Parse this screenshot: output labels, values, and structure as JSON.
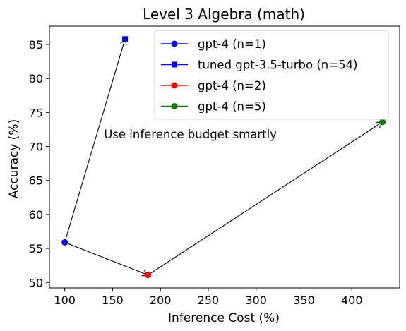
{
  "chart_data": {
    "type": "scatter",
    "title": "Level 3 Algebra (math)",
    "xlabel": "Inference Cost (%)",
    "ylabel": "Accuracy (%)",
    "xlim": [
      84,
      450
    ],
    "ylim": [
      49.2,
      87.7
    ],
    "xticks": [
      100,
      150,
      200,
      250,
      300,
      350,
      400
    ],
    "yticks": [
      50,
      55,
      60,
      65,
      70,
      75,
      80,
      85
    ],
    "grid": false,
    "legend_position": "top-right",
    "series": [
      {
        "name": "gpt-4 (n=1)",
        "color": "#0000ff",
        "marker": "circle",
        "points": [
          [
            100,
            55.9
          ]
        ]
      },
      {
        "name": "tuned gpt-3.5-turbo (n=54)",
        "color": "#0000ff",
        "marker": "square",
        "points": [
          [
            163,
            85.8
          ]
        ]
      },
      {
        "name": "gpt-4 (n=2)",
        "color": "#ff0000",
        "marker": "circle",
        "points": [
          [
            187,
            51.1
          ]
        ]
      },
      {
        "name": "gpt-4 (n=5)",
        "color": "#008000",
        "marker": "circle",
        "points": [
          [
            432,
            73.6
          ]
        ]
      }
    ],
    "arrows": [
      {
        "from": [
          100,
          55.9
        ],
        "to": [
          163,
          85.8
        ]
      },
      {
        "from": [
          100,
          55.9
        ],
        "to": [
          187,
          51.1
        ]
      },
      {
        "from": [
          187,
          51.1
        ],
        "to": [
          432,
          73.6
        ]
      }
    ],
    "annotations": [
      {
        "text": "Use inference budget smartly",
        "x": 141,
        "y": 71.8
      }
    ]
  }
}
